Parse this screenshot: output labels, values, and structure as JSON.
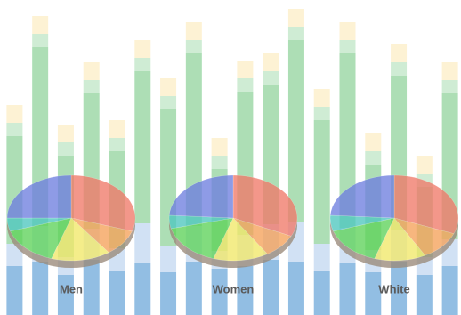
{
  "chart_data": [
    {
      "type": "bar",
      "stacked": true,
      "ylim": [
        0,
        354
      ],
      "categories": [
        null,
        null,
        null,
        null,
        null,
        null,
        null,
        null,
        null,
        null,
        null,
        null,
        null,
        null,
        null,
        null,
        null,
        null
      ],
      "series": [
        {
          "color": "#7fb3de",
          "values": [
            55,
            60,
            45,
            62,
            50,
            58,
            48,
            60,
            52,
            55,
            62,
            60,
            50,
            58,
            48,
            60,
            45,
            55
          ]
        },
        {
          "color": "#c9dcf2",
          "values": [
            25,
            40,
            20,
            35,
            25,
            45,
            30,
            40,
            20,
            35,
            40,
            45,
            30,
            40,
            25,
            35,
            20,
            30
          ]
        },
        {
          "color": "#9fd8a8",
          "values": [
            121,
            201,
            114,
            152,
            109,
            171,
            153,
            194,
            92,
            161,
            157,
            204,
            139,
            196,
            96,
            174,
            79,
            164
          ]
        },
        {
          "color": "#c7e9cc",
          "values": [
            15,
            15,
            15,
            15,
            15,
            15,
            15,
            15,
            15,
            15,
            15,
            15,
            15,
            15,
            15,
            15,
            15,
            15
          ]
        },
        {
          "color": "#fdf0cc",
          "values": [
            20,
            20,
            20,
            20,
            20,
            20,
            20,
            20,
            20,
            20,
            20,
            20,
            20,
            20,
            20,
            20,
            20,
            20
          ]
        }
      ]
    },
    {
      "type": "pie",
      "title": "Men",
      "values": [
        30,
        10,
        15,
        15,
        5,
        25
      ],
      "colors": [
        "#f07a6a",
        "#f5a25a",
        "#f2e86a",
        "#5ed35a",
        "#4fc7c0",
        "#6f7fe0"
      ]
    },
    {
      "type": "pie",
      "title": "Women",
      "values": [
        32,
        9,
        14,
        16,
        5,
        24
      ],
      "colors": [
        "#f07a6a",
        "#f5a25a",
        "#f2e86a",
        "#5ed35a",
        "#4fc7c0",
        "#6f7fe0"
      ]
    },
    {
      "type": "pie",
      "title": "White",
      "values": [
        31,
        11,
        13,
        15,
        6,
        24
      ],
      "colors": [
        "#f07a6a",
        "#f5a25a",
        "#f2e86a",
        "#5ed35a",
        "#4fc7c0",
        "#6f7fe0"
      ]
    }
  ]
}
